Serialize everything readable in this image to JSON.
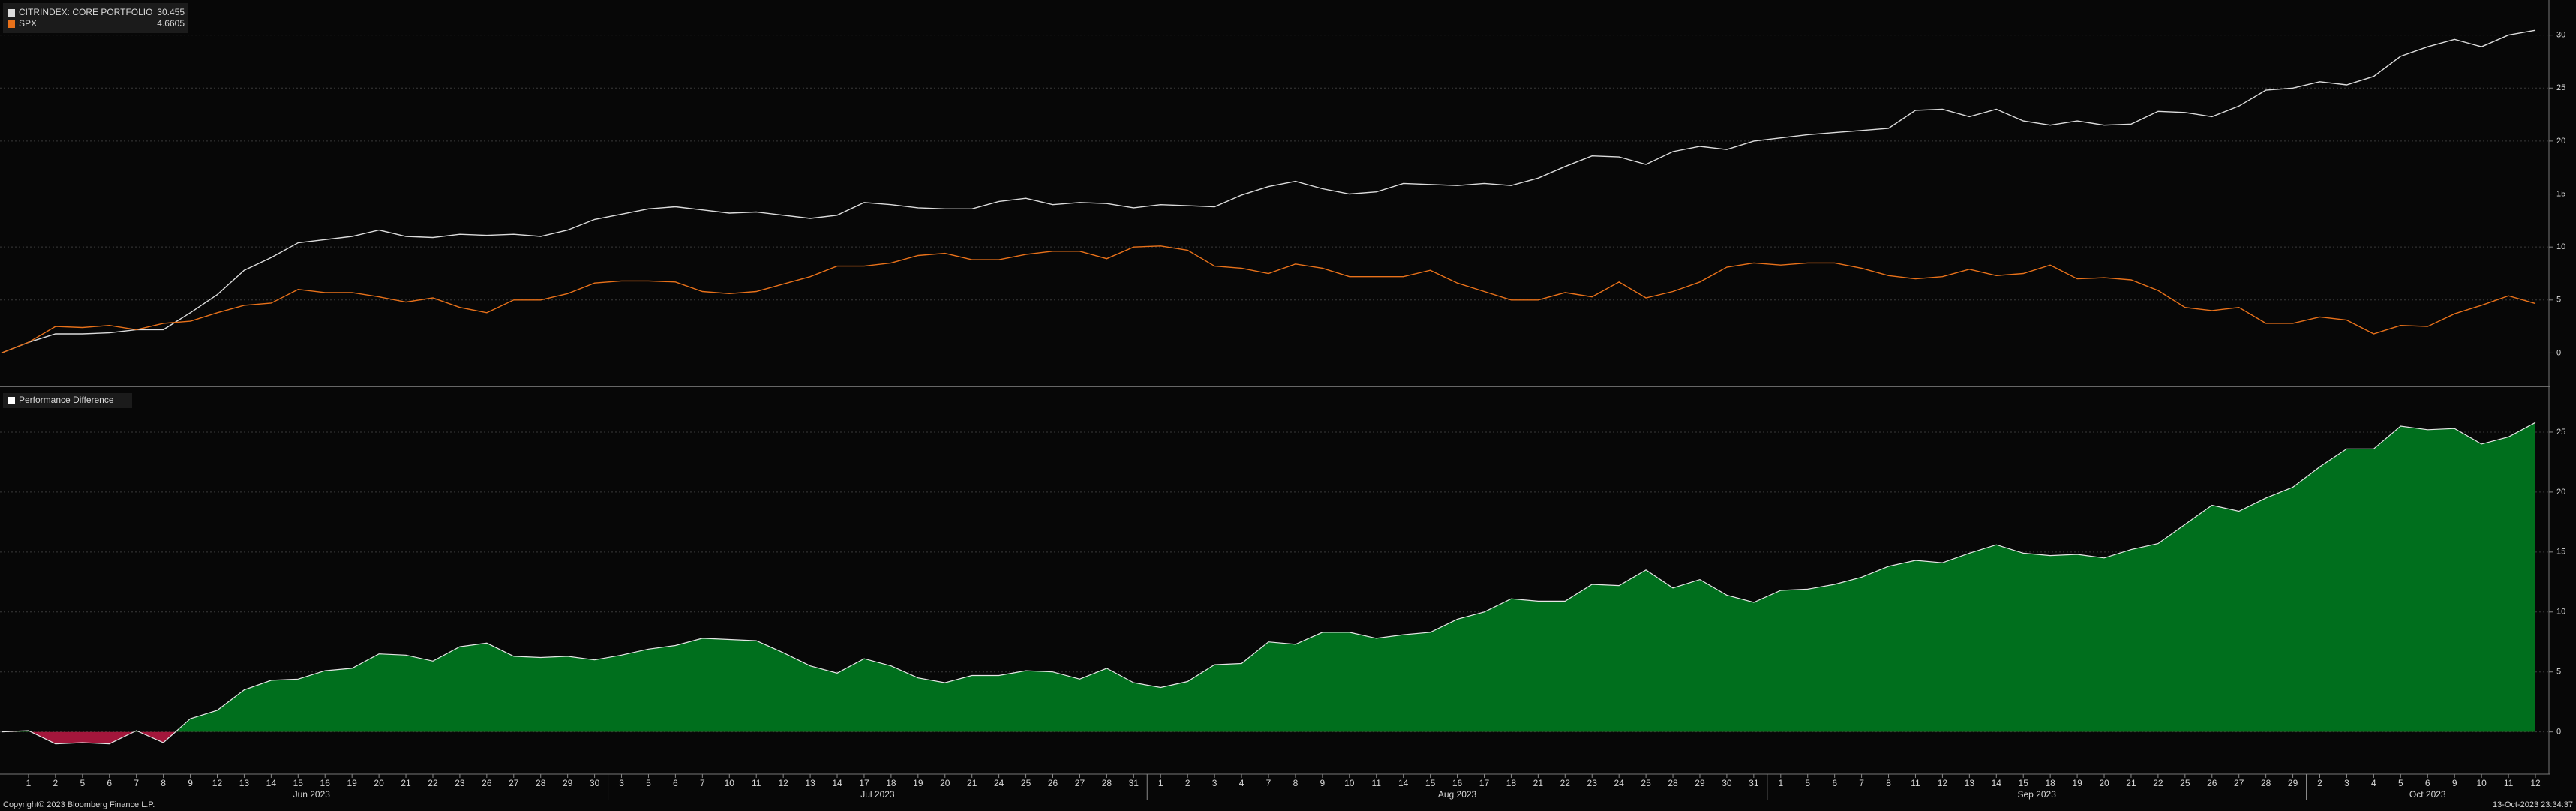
{
  "chart_data": [
    {
      "type": "line",
      "grid": true,
      "ylim": [
        -2.8,
        33.3
      ],
      "yticks": [
        0,
        5,
        10,
        15,
        20,
        25,
        30
      ],
      "series": [
        {
          "name": "CITRINDEX: CORE PORTFOLIO",
          "color": "#dcdcdc",
          "values": [
            0,
            1.0,
            1.8,
            1.8,
            1.9,
            2.2,
            2.2,
            3.8,
            5.5,
            7.8,
            9.0,
            10.4,
            10.7,
            11.0,
            11.6,
            11.0,
            10.9,
            11.2,
            11.1,
            11.2,
            11.0,
            11.6,
            12.6,
            13.1,
            13.6,
            13.8,
            13.5,
            13.2,
            13.3,
            13.0,
            12.7,
            13.0,
            14.2,
            14.0,
            13.7,
            13.6,
            13.6,
            14.3,
            14.6,
            14.0,
            14.2,
            14.1,
            13.7,
            14.0,
            13.9,
            13.8,
            14.9,
            15.7,
            16.2,
            15.5,
            15.0,
            15.2,
            16.0,
            15.9,
            15.8,
            16.0,
            15.8,
            16.5,
            17.6,
            18.6,
            18.5,
            17.8,
            19.0,
            19.5,
            19.2,
            20.0,
            20.3,
            20.6,
            20.8,
            21.0,
            21.2,
            22.9,
            23.0,
            22.3,
            23.0,
            21.9,
            21.5,
            21.9,
            21.5,
            21.6,
            22.8,
            22.7,
            22.3,
            23.3,
            24.8,
            25.0,
            25.6,
            25.3,
            26.1,
            28.0,
            28.9,
            29.6,
            28.9,
            30.0,
            30.455
          ]
        },
        {
          "name": "SPX",
          "color": "#e8711a",
          "values": [
            0,
            1.0,
            2.5,
            2.4,
            2.6,
            2.2,
            2.8,
            3.0,
            3.8,
            4.5,
            4.7,
            6.0,
            5.7,
            5.7,
            5.3,
            4.8,
            5.2,
            4.3,
            3.8,
            5.0,
            5.0,
            5.6,
            6.6,
            6.8,
            6.8,
            6.7,
            5.8,
            5.6,
            5.8,
            6.5,
            7.2,
            8.2,
            8.2,
            8.5,
            9.2,
            9.4,
            8.8,
            8.8,
            9.3,
            9.6,
            9.6,
            8.9,
            10.0,
            10.1,
            9.7,
            8.2,
            8.0,
            7.5,
            8.4,
            8.0,
            7.2,
            7.2,
            7.2,
            7.8,
            6.6,
            5.8,
            5.0,
            5.0,
            5.7,
            5.3,
            6.7,
            5.2,
            5.8,
            6.7,
            8.1,
            8.5,
            8.3,
            8.5,
            8.5,
            8.0,
            7.3,
            7.0,
            7.2,
            7.9,
            7.3,
            7.5,
            8.3,
            7.0,
            7.1,
            6.9,
            5.9,
            4.3,
            4.0,
            4.3,
            2.8,
            2.8,
            3.4,
            3.1,
            1.8,
            2.6,
            2.5,
            3.7,
            4.5,
            5.4,
            4.6605
          ]
        }
      ]
    },
    {
      "type": "area",
      "grid": true,
      "ylim": [
        -3.4,
        28.5
      ],
      "yticks": [
        0,
        5,
        10,
        15,
        20,
        25
      ],
      "categories": [
        null,
        "1",
        "2",
        "5",
        "6",
        "7",
        "8",
        "9",
        "12",
        "13",
        "14",
        "15",
        "16",
        "19",
        "20",
        "21",
        "22",
        "23",
        "26",
        "27",
        "28",
        "29",
        "30",
        "3",
        "5",
        "6",
        "7",
        "10",
        "11",
        "12",
        "13",
        "14",
        "17",
        "18",
        "19",
        "20",
        "21",
        "24",
        "25",
        "26",
        "27",
        "28",
        "31",
        "1",
        "2",
        "3",
        "4",
        "7",
        "8",
        "9",
        "10",
        "11",
        "14",
        "15",
        "16",
        "17",
        "18",
        "21",
        "22",
        "23",
        "24",
        "25",
        "28",
        "29",
        "30",
        "31",
        "1",
        "5",
        "6",
        "7",
        "8",
        "11",
        "12",
        "13",
        "14",
        "15",
        "18",
        "19",
        "20",
        "21",
        "22",
        "25",
        "26",
        "27",
        "28",
        "29",
        "2",
        "3",
        "4",
        "5",
        "6",
        "9",
        "10",
        "11",
        "12"
      ],
      "months": [
        "Jun 2023",
        "Jul 2023",
        "Aug 2023",
        "Sep 2023",
        "Oct 2023"
      ],
      "series": [
        {
          "name": "Performance Difference",
          "color": "#006f1d",
          "negative_color": "#a3163b",
          "values": [
            0,
            0.1,
            -1.0,
            -0.9,
            -1.0,
            0.1,
            -0.9,
            1.1,
            1.8,
            3.5,
            4.3,
            4.4,
            5.1,
            5.3,
            6.5,
            6.4,
            5.9,
            7.1,
            7.4,
            6.3,
            6.2,
            6.3,
            6.0,
            6.4,
            6.9,
            7.2,
            7.8,
            7.7,
            7.6,
            6.6,
            5.5,
            4.9,
            6.1,
            5.5,
            4.5,
            4.1,
            4.7,
            4.7,
            5.1,
            5.0,
            4.4,
            5.3,
            4.1,
            3.7,
            4.2,
            5.6,
            5.7,
            7.5,
            7.3,
            8.3,
            8.3,
            7.8,
            8.1,
            8.3,
            9.4,
            10.0,
            11.1,
            10.9,
            10.9,
            12.3,
            12.2,
            13.5,
            12.0,
            12.7,
            11.4,
            10.8,
            11.8,
            11.9,
            12.3,
            12.9,
            13.8,
            14.3,
            14.1,
            14.9,
            15.6,
            14.9,
            14.7,
            14.8,
            14.5,
            15.2,
            15.7,
            17.3,
            18.9,
            18.4,
            19.5,
            20.4,
            22.1,
            23.6,
            23.6,
            25.5,
            25.2,
            25.3,
            24.0,
            24.6,
            25.8
          ]
        }
      ]
    }
  ],
  "footer": {
    "copyright": "Copyright© 2023 Bloomberg Finance L.P.",
    "timestamp": "13-Oct-2023 23:34:37"
  }
}
